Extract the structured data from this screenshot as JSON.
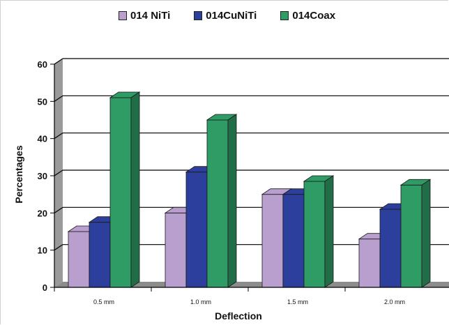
{
  "chart_data": {
    "type": "bar",
    "title": "",
    "xlabel": "Deflection",
    "ylabel": "Percentages",
    "categories": [
      "0.5 mm",
      "1.0 mm",
      "1.5 mm",
      "2.0 mm"
    ],
    "series": [
      {
        "name": "014 NiTi",
        "values": [
          15,
          20,
          25,
          13
        ],
        "color": "#b89fce"
      },
      {
        "name": "014CuNiTi",
        "values": [
          17.5,
          31,
          25,
          21
        ],
        "color": "#2c3f9c"
      },
      {
        "name": "014Coax",
        "values": [
          51,
          45,
          28.5,
          27.5
        ],
        "color": "#2f9c66"
      }
    ],
    "yticks": [
      "0",
      "10",
      "20",
      "30",
      "40",
      "50",
      "60"
    ],
    "ylim": [
      0,
      60
    ],
    "grid": true,
    "legend_position": "top"
  }
}
